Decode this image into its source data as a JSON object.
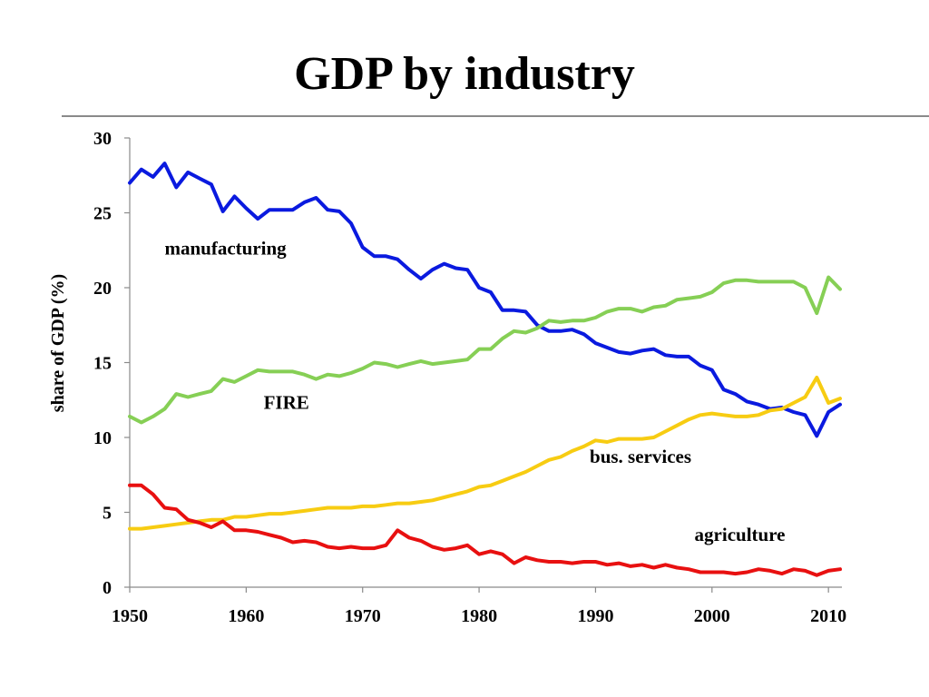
{
  "slide": {
    "title": "GDP by industry"
  },
  "chart_data": {
    "type": "line",
    "title": "GDP by industry",
    "ylabel": "share of GDP (%)",
    "xlabel": "",
    "xlim": [
      1950,
      2011
    ],
    "ylim": [
      0,
      30
    ],
    "x_ticks": [
      1950,
      1960,
      1970,
      1980,
      1990,
      2000,
      2010
    ],
    "y_ticks": [
      0,
      5,
      10,
      15,
      20,
      25,
      30
    ],
    "grid": false,
    "legend": "none",
    "x": [
      1950,
      1951,
      1952,
      1953,
      1954,
      1955,
      1956,
      1957,
      1958,
      1959,
      1960,
      1961,
      1962,
      1963,
      1964,
      1965,
      1966,
      1967,
      1968,
      1969,
      1970,
      1971,
      1972,
      1973,
      1974,
      1975,
      1976,
      1977,
      1978,
      1979,
      1980,
      1981,
      1982,
      1983,
      1984,
      1985,
      1986,
      1987,
      1988,
      1989,
      1990,
      1991,
      1992,
      1993,
      1994,
      1995,
      1996,
      1997,
      1998,
      1999,
      2000,
      2001,
      2002,
      2003,
      2004,
      2005,
      2006,
      2007,
      2008,
      2009,
      2010,
      2011
    ],
    "series": [
      {
        "name": "manufacturing",
        "color": "#0a1adf",
        "values": [
          27.0,
          27.9,
          27.4,
          28.3,
          26.7,
          27.7,
          27.3,
          26.9,
          25.1,
          26.1,
          25.3,
          24.6,
          25.2,
          25.2,
          25.2,
          25.7,
          26.0,
          25.2,
          25.1,
          24.3,
          22.7,
          22.1,
          22.1,
          21.9,
          21.2,
          20.6,
          21.2,
          21.6,
          21.3,
          21.2,
          20.0,
          19.7,
          18.5,
          18.5,
          18.4,
          17.5,
          17.1,
          17.1,
          17.2,
          16.9,
          16.3,
          16.0,
          15.7,
          15.6,
          15.8,
          15.9,
          15.5,
          15.4,
          15.4,
          14.8,
          14.5,
          13.2,
          12.9,
          12.4,
          12.2,
          11.9,
          12.0,
          11.7,
          11.5,
          10.1,
          11.7,
          12.2
        ]
      },
      {
        "name": "FIRE",
        "color": "#86cf55",
        "values": [
          11.4,
          11.0,
          11.4,
          11.9,
          12.9,
          12.7,
          12.9,
          13.1,
          13.9,
          13.7,
          14.1,
          14.5,
          14.4,
          14.4,
          14.4,
          14.2,
          13.9,
          14.2,
          14.1,
          14.3,
          14.6,
          15.0,
          14.9,
          14.7,
          14.9,
          15.1,
          14.9,
          15.0,
          15.1,
          15.2,
          15.9,
          15.9,
          16.6,
          17.1,
          17.0,
          17.3,
          17.8,
          17.7,
          17.8,
          17.8,
          18.0,
          18.4,
          18.6,
          18.6,
          18.4,
          18.7,
          18.8,
          19.2,
          19.3,
          19.4,
          19.7,
          20.3,
          20.5,
          20.5,
          20.4,
          20.4,
          20.4,
          20.4,
          20.0,
          18.3,
          20.7,
          19.9
        ]
      },
      {
        "name": "bus. services",
        "color": "#f7cc12",
        "values": [
          3.9,
          3.9,
          4.0,
          4.1,
          4.2,
          4.3,
          4.4,
          4.5,
          4.5,
          4.7,
          4.7,
          4.8,
          4.9,
          4.9,
          5.0,
          5.1,
          5.2,
          5.3,
          5.3,
          5.3,
          5.4,
          5.4,
          5.5,
          5.6,
          5.6,
          5.7,
          5.8,
          6.0,
          6.2,
          6.4,
          6.7,
          6.8,
          7.1,
          7.4,
          7.7,
          8.1,
          8.5,
          8.7,
          9.1,
          9.4,
          9.8,
          9.7,
          9.9,
          9.9,
          9.9,
          10.0,
          10.4,
          10.8,
          11.2,
          11.5,
          11.6,
          11.5,
          11.4,
          11.4,
          11.5,
          11.8,
          11.9,
          12.3,
          12.7,
          14.0,
          12.3,
          12.6
        ]
      },
      {
        "name": "agriculture",
        "color": "#e81010",
        "values": [
          6.8,
          6.8,
          6.2,
          5.3,
          5.2,
          4.5,
          4.3,
          4.0,
          4.4,
          3.8,
          3.8,
          3.7,
          3.5,
          3.3,
          3.0,
          3.1,
          3.0,
          2.7,
          2.6,
          2.7,
          2.6,
          2.6,
          2.8,
          3.8,
          3.3,
          3.1,
          2.7,
          2.5,
          2.6,
          2.8,
          2.2,
          2.4,
          2.2,
          1.6,
          2.0,
          1.8,
          1.7,
          1.7,
          1.6,
          1.7,
          1.7,
          1.5,
          1.6,
          1.4,
          1.5,
          1.3,
          1.5,
          1.3,
          1.2,
          1.0,
          1.0,
          1.0,
          0.9,
          1.0,
          1.2,
          1.1,
          0.9,
          1.2,
          1.1,
          0.8,
          1.1,
          1.2
        ]
      }
    ],
    "annotations": [
      {
        "text": "manufacturing",
        "x": 1953,
        "y": 22.2
      },
      {
        "text": "FIRE",
        "x": 1961.5,
        "y": 11.9
      },
      {
        "text": "bus. services",
        "x": 1989.5,
        "y": 8.3
      },
      {
        "text": "agriculture",
        "x": 1998.5,
        "y": 3.1
      }
    ]
  }
}
